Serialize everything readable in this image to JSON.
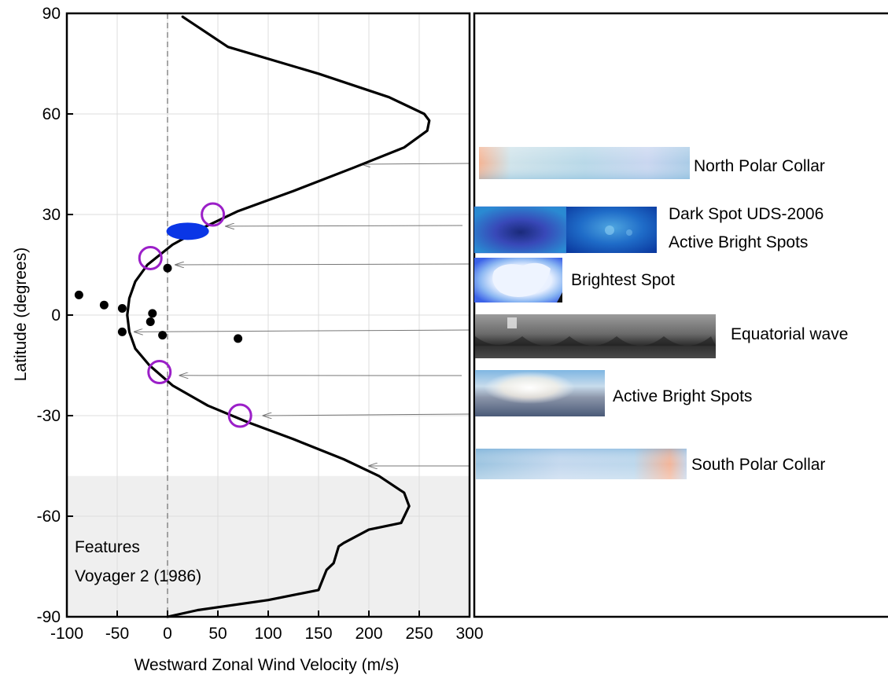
{
  "chart_data": {
    "type": "line",
    "title": "",
    "xlabel": "Westward Zonal Wind Velocity (m/s)",
    "ylabel": "Latitude (degrees)",
    "xlim": [
      -100,
      300
    ],
    "ylim": [
      -90,
      90
    ],
    "xticks": [
      -100,
      -50,
      0,
      50,
      100,
      150,
      200,
      250,
      300
    ],
    "yticks": [
      90,
      60,
      30,
      0,
      -30,
      -60,
      -90
    ],
    "grid": true,
    "reference_line": {
      "x": 0,
      "style": "dashed"
    },
    "shaded_region": {
      "lat_from": -90,
      "lat_to": -48,
      "label_lines": [
        "Features",
        "Voyager 2 (1986)"
      ]
    },
    "series": [
      {
        "type": "line",
        "color": "#000000",
        "points": [
          [
            15,
            89
          ],
          [
            60,
            80
          ],
          [
            150,
            72
          ],
          [
            220,
            65
          ],
          [
            255,
            60
          ],
          [
            260,
            58
          ],
          [
            258,
            55
          ],
          [
            235,
            50
          ],
          [
            185,
            44
          ],
          [
            125,
            37
          ],
          [
            70,
            31
          ],
          [
            35,
            26
          ],
          [
            5,
            21
          ],
          [
            -20,
            15
          ],
          [
            -32,
            10
          ],
          [
            -38,
            5
          ],
          [
            -40,
            0
          ],
          [
            -38,
            -5
          ],
          [
            -32,
            -10
          ],
          [
            -18,
            -15
          ],
          [
            5,
            -21
          ],
          [
            40,
            -27
          ],
          [
            80,
            -32
          ],
          [
            125,
            -37
          ],
          [
            175,
            -43
          ],
          [
            210,
            -48
          ],
          [
            235,
            -53
          ],
          [
            240,
            -57
          ],
          [
            232,
            -62
          ],
          [
            200,
            -64
          ],
          [
            175,
            -68
          ],
          [
            170,
            -69
          ],
          [
            165,
            -74
          ],
          [
            158,
            -76
          ],
          [
            150,
            -82
          ],
          [
            100,
            -85
          ],
          [
            30,
            -88
          ],
          [
            0,
            -90
          ]
        ]
      },
      {
        "type": "scatter",
        "color": "#000000",
        "points": [
          [
            -88,
            6
          ],
          [
            -63,
            3
          ],
          [
            -45,
            2
          ],
          [
            -15,
            0.5
          ],
          [
            -17,
            -2
          ],
          [
            -45,
            -5
          ],
          [
            -5,
            -6
          ],
          [
            70,
            -7
          ],
          [
            0,
            14
          ]
        ]
      },
      {
        "type": "circles",
        "color": "#9b1fc8",
        "points": [
          [
            45,
            30
          ],
          [
            -17,
            17
          ],
          [
            -8,
            -17
          ],
          [
            72,
            -30
          ]
        ]
      },
      {
        "type": "ellipse",
        "color": "#0a36e6",
        "points": [
          [
            20,
            25
          ]
        ]
      }
    ],
    "annotations": [
      {
        "label": "North Polar Collar",
        "arrow_to": [
          193,
          45
        ],
        "image": "north-polar-collar-image"
      },
      {
        "label": "Dark Spot UDS-2006",
        "arrow_to": [
          58,
          26.5
        ],
        "image": "dark-spot-image"
      },
      {
        "label": "Active Bright Spots",
        "image": "active-bright-spots-blue-image"
      },
      {
        "label": "Brightest Spot",
        "arrow_to": [
          8,
          15
        ],
        "image": "brightest-spot-image"
      },
      {
        "label": "Equatorial wave",
        "arrow_to": [
          -33,
          -5
        ],
        "image": "equatorial-wave-image"
      },
      {
        "label": "Active Bright Spots",
        "arrow_to": [
          12,
          -18
        ],
        "image": "active-bright-spots-image"
      },
      {
        "label": "South Polar Collar",
        "arrow_to": [
          200,
          -45
        ],
        "image": "south-polar-collar-image"
      }
    ]
  }
}
